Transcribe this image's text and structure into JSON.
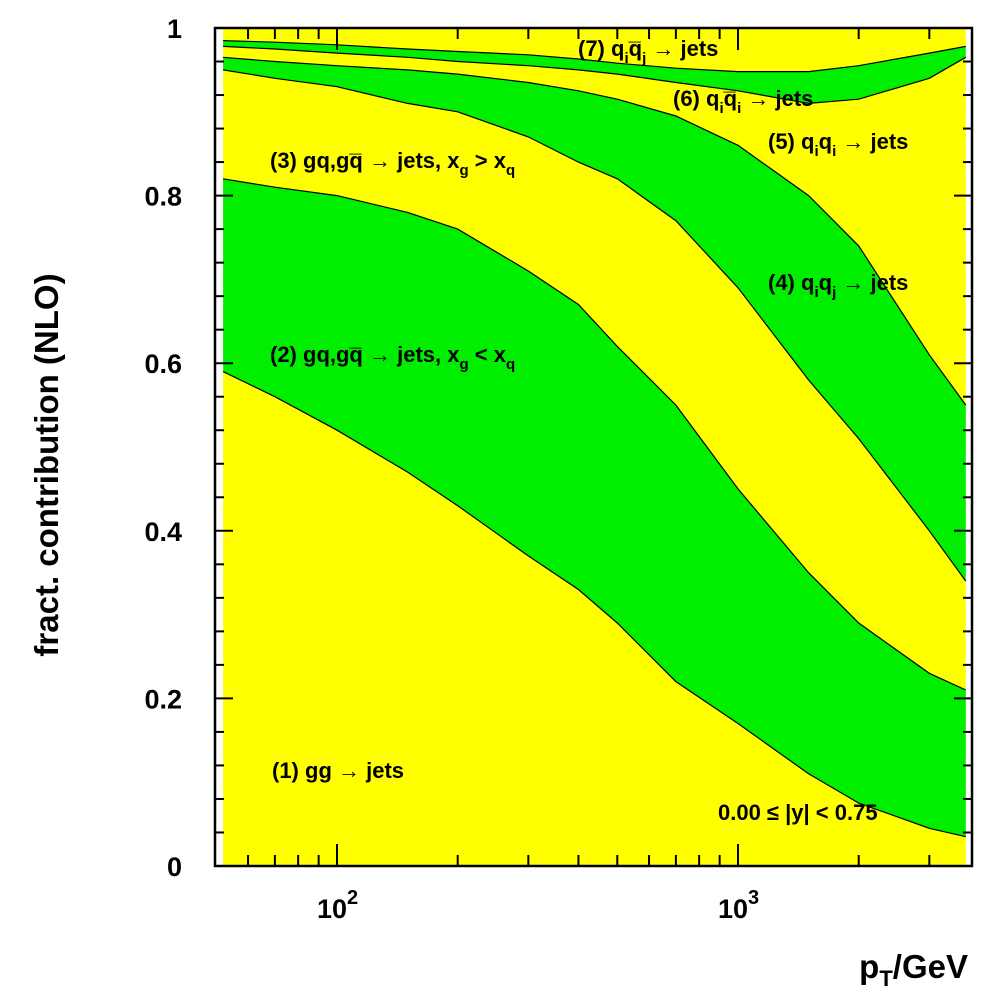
{
  "chart_data": {
    "type": "area",
    "stacked": true,
    "xscale": "log",
    "xlim": [
      52,
      3700
    ],
    "ylim": [
      0,
      1
    ],
    "xlabel": "p_T/GeV",
    "ylabel": "fract. contribution (NLO)",
    "x_tick_labels": [
      "10^2",
      "10^3"
    ],
    "y_tick_labels": [
      "0",
      "0.2",
      "0.4",
      "0.6",
      "0.8",
      "1"
    ],
    "x_major_ticks": [
      100,
      1000
    ],
    "y_major_ticks": [
      0,
      0.2,
      0.4,
      0.6,
      0.8,
      1
    ],
    "fill_colors": {
      "odd_bands": "#ffff00",
      "even_bands": "#00ee00"
    },
    "x": [
      52,
      70,
      100,
      150,
      200,
      300,
      400,
      500,
      700,
      1000,
      1500,
      2000,
      3000,
      3700
    ],
    "boundaries": [
      {
        "between": "(1)-(2)",
        "y": [
          0.59,
          0.56,
          0.52,
          0.47,
          0.43,
          0.37,
          0.33,
          0.29,
          0.22,
          0.17,
          0.11,
          0.075,
          0.045,
          0.035
        ]
      },
      {
        "between": "(2)-(3)",
        "y": [
          0.82,
          0.81,
          0.8,
          0.78,
          0.76,
          0.71,
          0.67,
          0.62,
          0.55,
          0.45,
          0.35,
          0.29,
          0.23,
          0.21
        ]
      },
      {
        "between": "(3)-(4)",
        "y": [
          0.95,
          0.94,
          0.93,
          0.91,
          0.9,
          0.87,
          0.84,
          0.82,
          0.77,
          0.69,
          0.58,
          0.51,
          0.4,
          0.34
        ]
      },
      {
        "between": "(4)-(5)",
        "y": [
          0.965,
          0.96,
          0.955,
          0.95,
          0.945,
          0.935,
          0.925,
          0.915,
          0.895,
          0.86,
          0.8,
          0.74,
          0.61,
          0.55
        ]
      },
      {
        "between": "(5)-(6)",
        "y": [
          0.978,
          0.975,
          0.97,
          0.965,
          0.96,
          0.955,
          0.95,
          0.945,
          0.935,
          0.925,
          0.91,
          0.915,
          0.94,
          0.965
        ]
      },
      {
        "between": "(6)-(7)",
        "y": [
          0.985,
          0.983,
          0.98,
          0.975,
          0.972,
          0.968,
          0.963,
          0.958,
          0.952,
          0.948,
          0.948,
          0.955,
          0.97,
          0.978
        ]
      }
    ],
    "band_labels": [
      {
        "id": 1,
        "text": "(1) gg → jets"
      },
      {
        "id": 2,
        "text": "(2) gq,gq̅ → jets, x_g < x_q"
      },
      {
        "id": 3,
        "text": "(3) gq,gq̅ → jets, x_g > x_q"
      },
      {
        "id": 4,
        "text": "(4) q_i q_j → jets"
      },
      {
        "id": 5,
        "text": "(5) q_i q_i → jets"
      },
      {
        "id": 6,
        "text": "(6) q_i q̅_i → jets"
      },
      {
        "id": 7,
        "text": "(7) q_i q̅_j → jets"
      }
    ],
    "annotation": "0.00 ≤ |y| < 0.75"
  }
}
